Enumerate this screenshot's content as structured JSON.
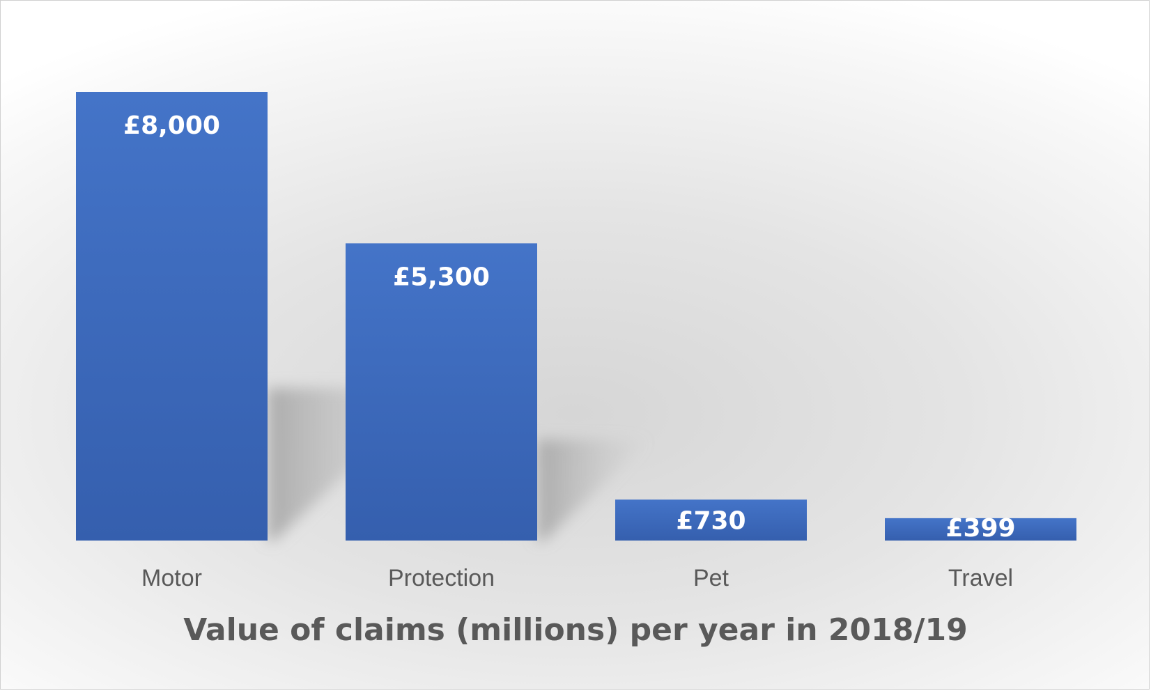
{
  "chart_data": {
    "type": "bar",
    "title": "",
    "xlabel": "Value of claims (millions) per year in 2018/19",
    "ylabel": "",
    "categories": [
      "Motor",
      "Protection",
      "Pet",
      "Travel"
    ],
    "values": [
      8000,
      5300,
      730,
      399
    ],
    "data_labels": [
      "£8,000",
      "£5,300",
      "£730",
      "£399"
    ],
    "ylim": [
      0,
      8000
    ],
    "grid": false,
    "legend": "none",
    "bar_color": "#4472C4",
    "label_color": "#FFFFFF",
    "text_color": "#595959"
  }
}
